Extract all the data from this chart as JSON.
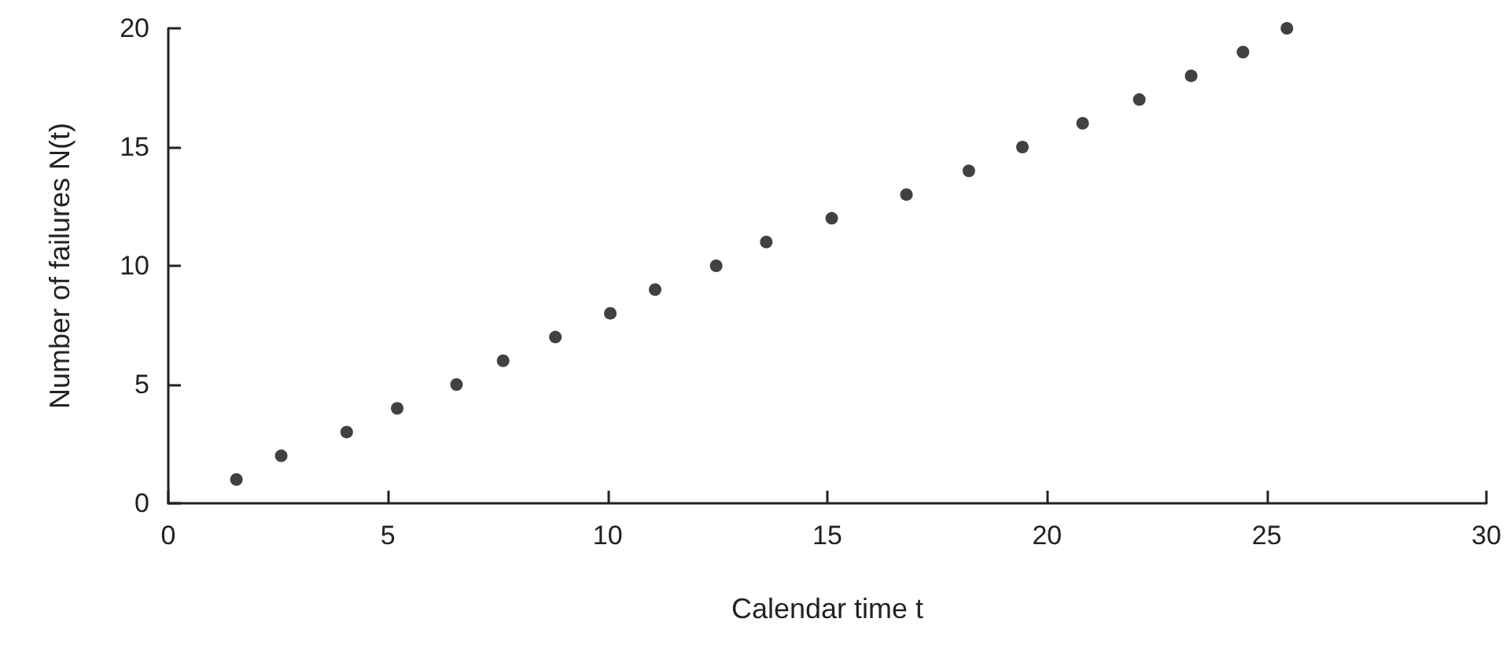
{
  "chart_data": {
    "type": "scatter",
    "xlabel": "Calendar time t",
    "ylabel": "Number of failures N(t)",
    "x": [
      1.55,
      2.57,
      4.06,
      5.21,
      6.56,
      7.62,
      8.81,
      10.06,
      11.08,
      12.47,
      13.61,
      15.1,
      16.8,
      18.22,
      19.44,
      20.81,
      22.1,
      23.28,
      24.46,
      25.46
    ],
    "values": [
      1,
      2,
      3,
      4,
      5,
      6,
      7,
      8,
      9,
      10,
      11,
      12,
      13,
      14,
      15,
      16,
      17,
      18,
      19,
      20
    ],
    "color": "#111111",
    "marker": "circle",
    "xlim": [
      0,
      30
    ],
    "xticks": [
      0,
      5,
      10,
      15,
      20,
      25,
      30
    ],
    "ylim": [
      0,
      20
    ],
    "yticks": [
      0,
      5,
      10,
      15,
      20
    ]
  }
}
